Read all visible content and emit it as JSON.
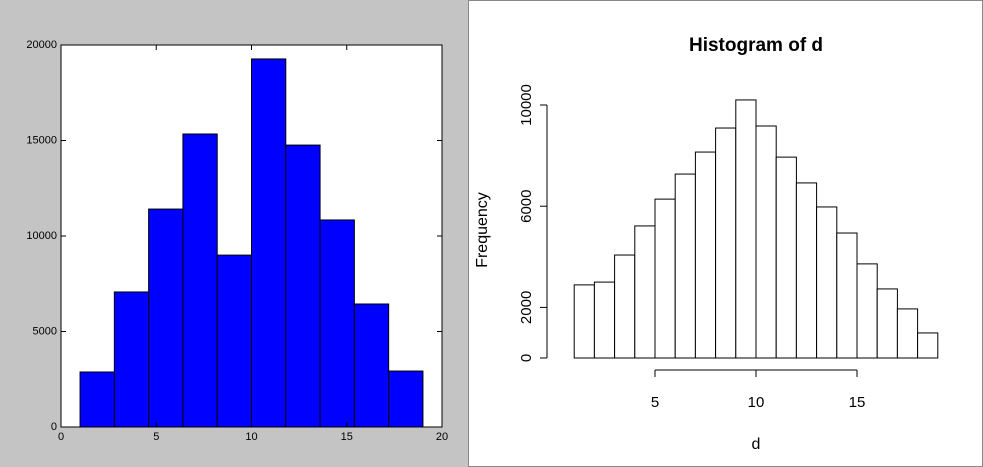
{
  "chart_data": [
    {
      "type": "histogram",
      "bins": [
        1,
        2.8,
        4.6,
        6.4,
        8.2,
        10,
        11.8,
        13.6,
        15.4,
        17.2,
        19
      ],
      "values": [
        2880,
        7070,
        11410,
        15340,
        9000,
        19270,
        14760,
        10840,
        6440,
        2930
      ],
      "color": "#0000ff",
      "xlim": [
        0,
        20
      ],
      "ylim": [
        0,
        20000
      ],
      "xticks": [
        0,
        5,
        10,
        15,
        20
      ],
      "yticks": [
        0,
        5000,
        10000,
        15000,
        20000
      ]
    },
    {
      "type": "histogram",
      "title": "Histogram of d",
      "xlabel": "d",
      "ylabel": "Frequency",
      "bins": [
        1,
        2,
        3,
        4,
        5,
        6,
        7,
        8,
        9,
        10,
        11,
        12,
        13,
        14,
        15,
        16,
        17,
        18,
        19
      ],
      "values": [
        2890,
        3000,
        4070,
        5220,
        6280,
        7270,
        8140,
        9090,
        10200,
        9170,
        7940,
        6920,
        5970,
        4940,
        3720,
        2730,
        1940,
        990
      ],
      "color": "#ffffff",
      "xlim": [
        5,
        15
      ],
      "ylim": [
        0,
        10000
      ],
      "xticks": [
        5,
        10,
        15
      ],
      "yticks": [
        0,
        2000,
        6000,
        10000
      ]
    }
  ]
}
